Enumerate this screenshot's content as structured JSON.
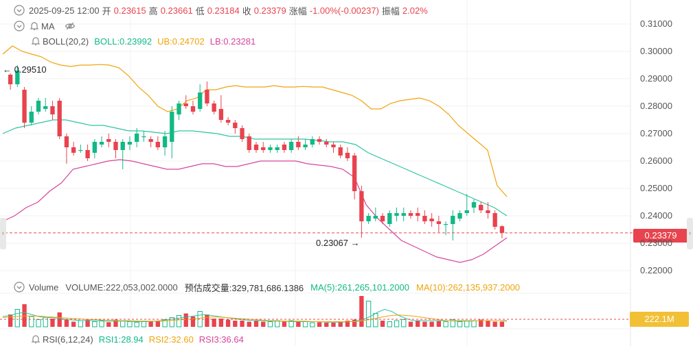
{
  "header": {
    "datetime": "2025-09-25 12:00",
    "open_label": "开",
    "open": "0.23615",
    "high_label": "高",
    "high": "0.23661",
    "low_label": "低",
    "low": "0.23184",
    "close_label": "收",
    "close": "0.23379",
    "change_label": "涨幅",
    "change": "-1.00%(-0.00237)",
    "amplitude_label": "振幅",
    "amplitude": "2.02%"
  },
  "ma_row": {
    "label": "MA"
  },
  "boll_row": {
    "label": "BOLL(20,2)",
    "boll": "BOLL:0.23992",
    "ub": "UB:0.24702",
    "lb": "LB:0.23281"
  },
  "volume_row": {
    "label": "Volume",
    "volume": "VOLUME:222,053,002.0000",
    "estimate": "预估成交量:329,781,686.1386",
    "ma5": "MA(5):261,265,101.2000",
    "ma10": "MA(10):262,135,937.2000"
  },
  "rsi_row": {
    "label": "RSI(6,12,24)",
    "rsi1": "RSI1:28.94",
    "rsi2": "RSI2:32.60",
    "rsi3": "RSI3:36.64"
  },
  "price_tag": "0.23379",
  "volume_tag": "222.1M",
  "annotations": {
    "high_marker": "← 0.29510",
    "low_marker": "0.23067 →"
  },
  "colors": {
    "up": "#12b886",
    "down": "#e8434e",
    "mid": "#2ec4a0",
    "upper": "#f0a30a",
    "lower": "#d6459b"
  },
  "chart_data": {
    "type": "candlestick",
    "y_ticks": [
      "0.31000",
      "0.30000",
      "0.29000",
      "0.28000",
      "0.27000",
      "0.26000",
      "0.25000",
      "0.24000",
      "0.23000",
      "0.22000"
    ],
    "ylim": [
      0.2175,
      0.3125
    ],
    "current_price": 0.23379,
    "candles": [
      [
        0.2915,
        0.288,
        0.292,
        0.286
      ],
      [
        0.288,
        0.293,
        0.295,
        0.287
      ],
      [
        0.286,
        0.274,
        0.287,
        0.272
      ],
      [
        0.274,
        0.278,
        0.28,
        0.273
      ],
      [
        0.278,
        0.282,
        0.283,
        0.277
      ],
      [
        0.279,
        0.28,
        0.283,
        0.278
      ],
      [
        0.28,
        0.277,
        0.282,
        0.275
      ],
      [
        0.282,
        0.269,
        0.283,
        0.268
      ],
      [
        0.269,
        0.265,
        0.27,
        0.259
      ],
      [
        0.265,
        0.263,
        0.267,
        0.262
      ],
      [
        0.264,
        0.264,
        0.266,
        0.263
      ],
      [
        0.264,
        0.261,
        0.266,
        0.26
      ],
      [
        0.263,
        0.267,
        0.268,
        0.261
      ],
      [
        0.266,
        0.267,
        0.269,
        0.265
      ],
      [
        0.268,
        0.267,
        0.27,
        0.265
      ],
      [
        0.267,
        0.264,
        0.268,
        0.261
      ],
      [
        0.264,
        0.267,
        0.268,
        0.257
      ],
      [
        0.266,
        0.267,
        0.269,
        0.264
      ],
      [
        0.267,
        0.27,
        0.272,
        0.265
      ],
      [
        0.269,
        0.269,
        0.271,
        0.267
      ],
      [
        0.268,
        0.267,
        0.269,
        0.265
      ],
      [
        0.267,
        0.265,
        0.269,
        0.264
      ],
      [
        0.265,
        0.269,
        0.271,
        0.262
      ],
      [
        0.267,
        0.278,
        0.28,
        0.261
      ],
      [
        0.277,
        0.281,
        0.282,
        0.275
      ],
      [
        0.281,
        0.28,
        0.284,
        0.279
      ],
      [
        0.28,
        0.278,
        0.282,
        0.277
      ],
      [
        0.279,
        0.285,
        0.288,
        0.278
      ],
      [
        0.286,
        0.281,
        0.289,
        0.28
      ],
      [
        0.281,
        0.278,
        0.282,
        0.277
      ],
      [
        0.279,
        0.275,
        0.284,
        0.274
      ],
      [
        0.275,
        0.274,
        0.276,
        0.273
      ],
      [
        0.274,
        0.272,
        0.275,
        0.27
      ],
      [
        0.272,
        0.268,
        0.273,
        0.267
      ],
      [
        0.269,
        0.264,
        0.27,
        0.263
      ],
      [
        0.266,
        0.264,
        0.267,
        0.263
      ],
      [
        0.265,
        0.264,
        0.267,
        0.263
      ],
      [
        0.264,
        0.265,
        0.266,
        0.263
      ],
      [
        0.264,
        0.265,
        0.266,
        0.263
      ],
      [
        0.266,
        0.264,
        0.267,
        0.263
      ],
      [
        0.264,
        0.267,
        0.268,
        0.263
      ],
      [
        0.267,
        0.265,
        0.269,
        0.264
      ],
      [
        0.265,
        0.266,
        0.268,
        0.264
      ],
      [
        0.266,
        0.268,
        0.269,
        0.265
      ],
      [
        0.268,
        0.267,
        0.269,
        0.266
      ],
      [
        0.267,
        0.266,
        0.268,
        0.265
      ],
      [
        0.266,
        0.265,
        0.267,
        0.263
      ],
      [
        0.265,
        0.262,
        0.266,
        0.261
      ],
      [
        0.263,
        0.261,
        0.265,
        0.26
      ],
      [
        0.262,
        0.249,
        0.263,
        0.246
      ],
      [
        0.249,
        0.238,
        0.251,
        0.232
      ],
      [
        0.238,
        0.24,
        0.241,
        0.237
      ],
      [
        0.239,
        0.24,
        0.243,
        0.238
      ],
      [
        0.24,
        0.238,
        0.241,
        0.237
      ],
      [
        0.237,
        0.241,
        0.242,
        0.236
      ],
      [
        0.24,
        0.241,
        0.243,
        0.238
      ],
      [
        0.24,
        0.241,
        0.243,
        0.238
      ],
      [
        0.241,
        0.24,
        0.242,
        0.239
      ],
      [
        0.241,
        0.24,
        0.243,
        0.238
      ],
      [
        0.24,
        0.238,
        0.242,
        0.237
      ],
      [
        0.239,
        0.238,
        0.241,
        0.236
      ],
      [
        0.238,
        0.237,
        0.24,
        0.234
      ],
      [
        0.237,
        0.237,
        0.238,
        0.233
      ],
      [
        0.237,
        0.24,
        0.242,
        0.231
      ],
      [
        0.239,
        0.241,
        0.242,
        0.238
      ],
      [
        0.241,
        0.242,
        0.248,
        0.24
      ],
      [
        0.243,
        0.245,
        0.246,
        0.241
      ],
      [
        0.244,
        0.242,
        0.245,
        0.241
      ],
      [
        0.242,
        0.241,
        0.245,
        0.239
      ],
      [
        0.241,
        0.236,
        0.242,
        0.235
      ],
      [
        0.2362,
        0.2338,
        0.2366,
        0.2318
      ]
    ],
    "boll_upper": [
      0.299,
      0.302,
      0.3,
      0.299,
      0.298,
      0.296,
      0.295,
      0.2945,
      0.295,
      0.295,
      0.2952,
      0.295,
      0.294,
      0.291,
      0.287,
      0.284,
      0.28,
      0.278,
      0.279,
      0.282,
      0.283,
      0.286,
      0.286,
      0.287,
      0.2875,
      0.287,
      0.287,
      0.287,
      0.2875,
      0.287,
      0.287,
      0.2872,
      0.287,
      0.287,
      0.286,
      0.285,
      0.284,
      0.282,
      0.279,
      0.279,
      0.281,
      0.282,
      0.2825,
      0.283,
      0.282,
      0.28,
      0.277,
      0.273,
      0.27,
      0.267,
      0.264,
      0.251,
      0.247
    ],
    "boll_mid": [
      0.27,
      0.272,
      0.273,
      0.274,
      0.275,
      0.275,
      0.274,
      0.273,
      0.273,
      0.272,
      0.271,
      0.271,
      0.2705,
      0.27,
      0.271,
      0.271,
      0.2705,
      0.27,
      0.269,
      0.269,
      0.268,
      0.268,
      0.268,
      0.268,
      0.268,
      0.2675,
      0.267,
      0.267,
      0.266,
      0.263,
      0.261,
      0.259,
      0.257,
      0.255,
      0.253,
      0.251,
      0.249,
      0.247,
      0.245,
      0.243,
      0.24
    ],
    "boll_lower": [
      0.238,
      0.24,
      0.243,
      0.245,
      0.249,
      0.252,
      0.257,
      0.258,
      0.259,
      0.26,
      0.2605,
      0.26,
      0.259,
      0.258,
      0.257,
      0.257,
      0.258,
      0.259,
      0.259,
      0.258,
      0.258,
      0.259,
      0.26,
      0.26,
      0.26,
      0.26,
      0.259,
      0.2585,
      0.258,
      0.257,
      0.254,
      0.244,
      0.239,
      0.235,
      0.231,
      0.229,
      0.227,
      0.225,
      0.224,
      0.223,
      0.224,
      0.226,
      0.229,
      0.232
    ],
    "volumes": [
      24,
      34,
      44,
      20,
      14,
      18,
      16,
      28,
      14,
      10,
      12,
      14,
      10,
      12,
      9,
      14,
      12,
      10,
      9,
      11,
      10,
      12,
      14,
      18,
      22,
      26,
      20,
      30,
      24,
      16,
      16,
      14,
      12,
      12,
      10,
      12,
      10,
      10,
      12,
      10,
      12,
      10,
      10,
      8,
      9,
      8,
      8,
      10,
      12,
      14,
      60,
      50,
      26,
      12,
      10,
      12,
      14,
      10,
      12,
      10,
      10,
      11,
      10,
      14,
      10,
      12,
      12,
      14,
      12,
      10,
      10
    ],
    "volume_ma5": [
      20,
      22,
      26,
      28,
      24,
      20,
      18,
      18,
      16,
      14,
      13,
      12,
      12,
      12,
      11,
      11,
      11,
      11,
      10,
      10,
      10,
      11,
      12,
      14,
      16,
      18,
      20,
      22,
      24,
      22,
      20,
      18,
      16,
      14,
      13,
      12,
      12,
      11,
      11,
      11,
      10,
      10,
      10,
      10,
      10,
      9,
      9,
      9,
      10,
      11,
      14,
      20,
      28,
      34,
      30,
      22,
      16,
      12,
      12,
      12,
      12,
      12,
      12,
      11,
      11,
      11,
      12,
      12,
      12,
      12,
      11
    ],
    "volume_ma10": [
      18,
      19,
      20,
      21,
      21,
      21,
      20,
      19,
      18,
      17,
      16,
      15,
      14,
      14,
      13,
      13,
      12,
      12,
      12,
      11,
      11,
      11,
      11,
      12,
      13,
      14,
      15,
      16,
      18,
      19,
      19,
      18,
      17,
      16,
      15,
      14,
      13,
      12,
      12,
      11,
      11,
      11,
      11,
      10,
      10,
      10,
      10,
      10,
      10,
      10,
      12,
      14,
      17,
      20,
      22,
      23,
      22,
      21,
      19,
      17,
      15,
      13,
      12,
      12,
      12,
      12,
      12,
      12,
      12,
      12,
      12
    ]
  }
}
